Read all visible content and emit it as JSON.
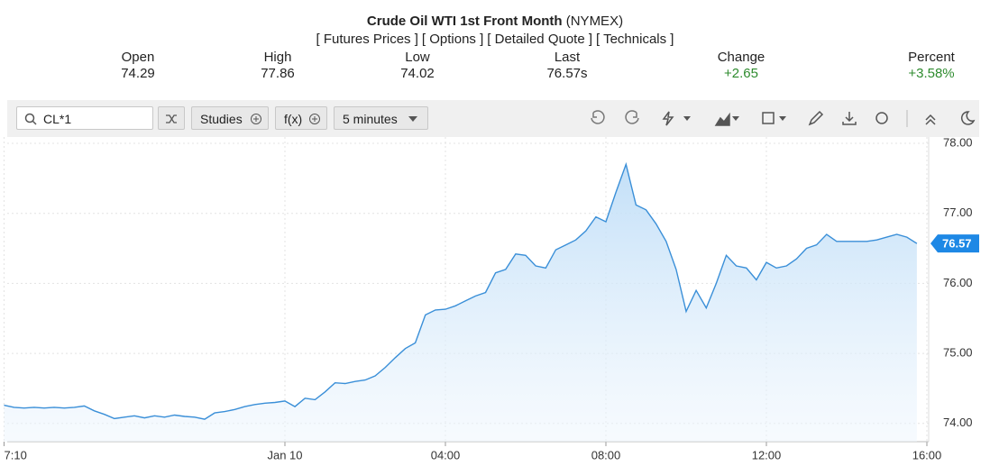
{
  "header": {
    "title": "Crude Oil WTI 1st Front Month",
    "exchange": "(NYMEX)",
    "links": [
      "[ Futures Prices ]",
      "[ Options ]",
      "[ Detailed Quote ]",
      "[ Technicals ]"
    ]
  },
  "quote": [
    {
      "label": "Open",
      "value": "74.29"
    },
    {
      "label": "High",
      "value": "77.86"
    },
    {
      "label": "Low",
      "value": "74.02"
    },
    {
      "label": "Last",
      "value": "76.57s"
    },
    {
      "label": "Change",
      "value": "+2.65"
    },
    {
      "label": "Percent",
      "value": "+3.58%"
    }
  ],
  "toolbar": {
    "symbol": "CL*1",
    "studies": "Studies",
    "fx": "f(x)",
    "interval": "5 minutes"
  },
  "chart_data": {
    "type": "line",
    "color": "#3a8fd8",
    "grid": true,
    "last_price_label": "76.57",
    "categories": [
      "7:10",
      null,
      null,
      null,
      null,
      null,
      null,
      null,
      null,
      null,
      null,
      null,
      null,
      null,
      null,
      null,
      null,
      null,
      null,
      null,
      null,
      null,
      null,
      null,
      null,
      null,
      null,
      null,
      "Jan 10",
      null,
      null,
      null,
      null,
      null,
      null,
      null,
      null,
      null,
      null,
      null,
      null,
      null,
      null,
      null,
      "04:00",
      null,
      null,
      null,
      null,
      null,
      null,
      null,
      null,
      null,
      null,
      null,
      null,
      null,
      null,
      null,
      "08:00",
      null,
      null,
      null,
      null,
      null,
      null,
      null,
      null,
      null,
      null,
      null,
      null,
      null,
      null,
      null,
      "12:00",
      null,
      null,
      null,
      null,
      null,
      null,
      null,
      null,
      null,
      null,
      null,
      null,
      null,
      null,
      null,
      "16:00"
    ],
    "values": [
      74.26,
      74.23,
      74.22,
      74.23,
      74.22,
      74.23,
      74.22,
      74.23,
      74.25,
      74.18,
      74.13,
      74.07,
      74.09,
      74.11,
      74.08,
      74.11,
      74.09,
      74.12,
      74.1,
      74.09,
      74.06,
      74.15,
      74.17,
      74.2,
      74.24,
      74.27,
      74.29,
      74.3,
      74.32,
      74.24,
      74.36,
      74.34,
      74.45,
      74.58,
      74.57,
      74.6,
      74.62,
      74.68,
      74.8,
      74.94,
      75.07,
      75.15,
      75.55,
      75.62,
      75.63,
      75.68,
      75.75,
      75.82,
      75.87,
      76.15,
      76.2,
      76.42,
      76.4,
      76.25,
      76.22,
      76.48,
      76.55,
      76.62,
      76.75,
      76.95,
      76.88,
      77.3,
      77.7,
      77.12,
      77.05,
      76.85,
      76.6,
      76.2,
      75.6,
      75.9,
      75.65,
      76.0,
      76.4,
      76.25,
      76.22,
      76.05,
      76.3,
      76.22,
      76.25,
      76.35,
      76.5,
      76.55,
      76.7,
      76.6,
      76.6,
      76.6,
      76.6,
      76.62,
      76.66,
      76.7,
      76.66,
      76.57,
      null
    ],
    "ylim": [
      73.74,
      78.09
    ],
    "yticks": [
      {
        "value": 74,
        "label": "74.00"
      },
      {
        "value": 75,
        "label": "75.00"
      },
      {
        "value": 76,
        "label": "76.00"
      },
      {
        "value": 77,
        "label": "77.00"
      },
      {
        "value": 78,
        "label": "78.00"
      }
    ]
  }
}
